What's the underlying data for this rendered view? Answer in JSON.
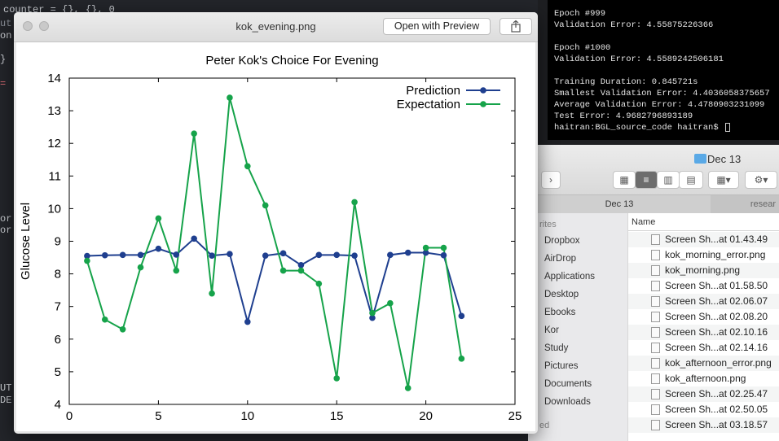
{
  "editor": {
    "lines": [
      {
        "text": "counter = {}, {}, 0",
        "color": "#c9ccd1"
      },
      {
        "text": "ut",
        "color": "#8a8f98"
      },
      {
        "text": "on",
        "color": "#c9ccd1"
      },
      {
        "text": "}",
        "color": "#c9ccd1"
      },
      {
        "text": "=",
        "color": "#e06c75"
      },
      {
        "text": "or",
        "color": "#c9ccd1"
      },
      {
        "text": "or",
        "color": "#c9ccd1"
      },
      {
        "text": "UT",
        "color": "#c9ccd1"
      },
      {
        "text": "DE",
        "color": "#c9ccd1"
      }
    ]
  },
  "terminal": {
    "lines": [
      "Epoch #999",
      "Validation Error: 4.55875226366",
      "",
      "Epoch #1000",
      "Validation Error: 4.5589242506181",
      "",
      "Training Duration: 0.845721s",
      "Smallest Validation Error: 4.4036058375657",
      "Average Validation Error: 4.4780903231099",
      "Test Error: 4.9682796893189",
      "haitran:BGL_source_code haitran$ "
    ]
  },
  "finder": {
    "title": "Dec 13",
    "tabs": [
      "Dec 13",
      "resear"
    ],
    "sidebar_header": "rites",
    "sidebar_footer": "ed",
    "sidebar_items": [
      "Dropbox",
      "AirDrop",
      "Applications",
      "Desktop",
      "Ebooks",
      "Kor",
      "Study",
      "Pictures",
      "Documents",
      "Downloads"
    ],
    "column_header": "Name",
    "files": [
      "Screen Sh...at 01.43.49",
      "kok_morning_error.png",
      "kok_morning.png",
      "Screen Sh...at 01.58.50",
      "Screen Sh...at 02.06.07",
      "Screen Sh...at 02.08.20",
      "Screen Sh...at 02.10.16",
      "Screen Sh...at 02.14.16",
      "kok_afternoon_error.png",
      "kok_afternoon.png",
      "Screen Sh...at 02.25.47",
      "Screen Sh...at 02.50.05",
      "Screen Sh...at 03.18.57"
    ]
  },
  "preview": {
    "title": "kok_evening.png",
    "open_button": "Open with Preview",
    "share_icon": "share-icon"
  },
  "chart_data": {
    "type": "line",
    "title": "Peter Kok's Choice For Evening",
    "xlabel": "",
    "ylabel": "Glucose Level",
    "xlim": [
      0,
      25
    ],
    "ylim": [
      4,
      14
    ],
    "xticks": [
      0,
      5,
      10,
      15,
      20,
      25
    ],
    "yticks": [
      4,
      5,
      6,
      7,
      8,
      9,
      10,
      11,
      12,
      13,
      14
    ],
    "legend_position": "top-right",
    "grid": false,
    "x": [
      1,
      2,
      3,
      4,
      5,
      6,
      7,
      8,
      9,
      10,
      11,
      12,
      13,
      14,
      15,
      16,
      17,
      18,
      19,
      20,
      21,
      22
    ],
    "series": [
      {
        "name": "Prediction",
        "color": "#1f3f8f",
        "values": [
          8.55,
          8.57,
          8.58,
          8.58,
          8.77,
          8.59,
          9.08,
          8.56,
          8.61,
          6.53,
          8.56,
          8.63,
          8.27,
          8.58,
          8.58,
          8.56,
          6.65,
          8.58,
          8.65,
          8.65,
          8.57,
          6.71
        ]
      },
      {
        "name": "Expectation",
        "color": "#16a34a",
        "values": [
          8.4,
          6.6,
          6.3,
          8.2,
          9.7,
          8.1,
          12.3,
          7.4,
          13.4,
          11.3,
          10.1,
          8.1,
          8.1,
          7.7,
          4.8,
          10.2,
          6.8,
          7.1,
          4.5,
          8.8,
          8.8,
          5.4
        ]
      }
    ]
  }
}
